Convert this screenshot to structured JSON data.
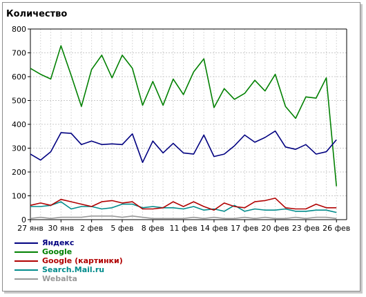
{
  "chart_data": {
    "type": "line",
    "title": "Количество",
    "xlabel": "",
    "ylabel": "",
    "ylim": [
      0,
      800
    ],
    "yticks": [
      0,
      100,
      200,
      300,
      400,
      500,
      600,
      700,
      800
    ],
    "grid": true,
    "legend_position": "bottom-left",
    "x_tick_labels": [
      "27 янв",
      "30 янв",
      "2 фев",
      "5 фев",
      "8 фев",
      "11 фев",
      "14 фев",
      "17 фев",
      "20 фев",
      "23 фев",
      "26 фев"
    ],
    "x_tick_days": [
      0,
      3,
      6,
      9,
      12,
      15,
      18,
      21,
      24,
      27,
      30
    ],
    "x_days": [
      0,
      1,
      2,
      3,
      4,
      5,
      6,
      7,
      8,
      9,
      10,
      11,
      12,
      13,
      14,
      15,
      16,
      17,
      18,
      19,
      20,
      21,
      22,
      23,
      24,
      25,
      26,
      27,
      28,
      29,
      30,
      31
    ],
    "series": [
      {
        "name": "Яндекс",
        "color": "#000080",
        "values": [
          275,
          250,
          285,
          365,
          362,
          315,
          330,
          315,
          318,
          315,
          360,
          240,
          330,
          280,
          320,
          280,
          275,
          355,
          265,
          275,
          310,
          355,
          325,
          345,
          372,
          305,
          295,
          315,
          275,
          285,
          335,
          null
        ]
      },
      {
        "name": "Google",
        "color": "#008000",
        "values": [
          635,
          610,
          590,
          730,
          605,
          475,
          630,
          690,
          595,
          690,
          635,
          480,
          580,
          480,
          590,
          525,
          620,
          675,
          470,
          550,
          505,
          530,
          585,
          540,
          610,
          475,
          425,
          515,
          510,
          595,
          140,
          null
        ]
      },
      {
        "name": "Google (картинки)",
        "color": "#b00000",
        "values": [
          60,
          70,
          60,
          85,
          75,
          65,
          55,
          75,
          80,
          70,
          75,
          45,
          45,
          50,
          75,
          55,
          75,
          55,
          40,
          70,
          55,
          50,
          75,
          80,
          90,
          50,
          45,
          45,
          65,
          50,
          50,
          null
        ]
      },
      {
        "name": "Search.Mail.ru",
        "color": "#008b8b",
        "values": [
          55,
          55,
          60,
          75,
          45,
          55,
          55,
          45,
          50,
          65,
          65,
          50,
          55,
          50,
          50,
          45,
          55,
          40,
          45,
          35,
          60,
          35,
          45,
          40,
          40,
          45,
          35,
          35,
          40,
          40,
          30,
          null
        ]
      },
      {
        "name": "Webalta",
        "color": "#999999",
        "values": [
          5,
          10,
          5,
          10,
          10,
          10,
          15,
          15,
          15,
          10,
          15,
          10,
          5,
          5,
          5,
          5,
          10,
          5,
          10,
          5,
          5,
          10,
          5,
          10,
          5,
          5,
          10,
          5,
          10,
          10,
          5,
          null
        ]
      }
    ]
  }
}
